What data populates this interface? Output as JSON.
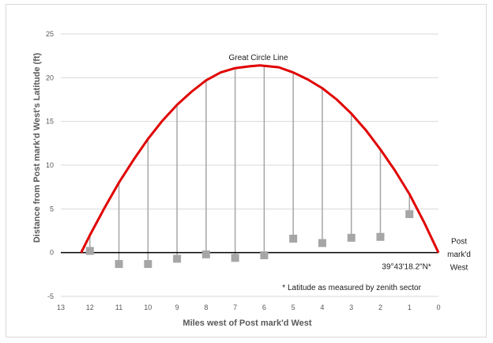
{
  "chart_data": {
    "type": "scatter",
    "xlabel": "Miles west of Post mark'd West",
    "ylabel": "Distance from Post mark'd West's Latitude (ft)",
    "xlim": [
      13,
      0
    ],
    "ylim": [
      -5,
      25
    ],
    "x_ticks": [
      13,
      12,
      11,
      10,
      9,
      8,
      7,
      6,
      5,
      4,
      3,
      2,
      1,
      0
    ],
    "y_ticks": [
      -5,
      0,
      5,
      10,
      15,
      20,
      25
    ],
    "grid": true,
    "colors": {
      "curve": "#e00000",
      "markers": "#a6a6a6",
      "droplines": "#a6a6a6",
      "grid": "#d9d9d9",
      "zero_line": "#000000"
    },
    "series": [
      {
        "type": "line",
        "x": [
          12.3,
          12.0,
          11.5,
          11.0,
          10.5,
          10.0,
          9.5,
          9.0,
          8.5,
          8.0,
          7.5,
          7.0,
          6.5,
          6.15,
          5.5,
          5.0,
          4.5,
          4.0,
          3.5,
          3.0,
          2.5,
          2.0,
          1.5,
          1.0,
          0.5,
          0.0
        ],
        "y": [
          0.0,
          2.0,
          5.1,
          8.0,
          10.6,
          13.0,
          15.1,
          16.9,
          18.4,
          19.7,
          20.6,
          21.1,
          21.3,
          21.4,
          21.2,
          20.6,
          19.8,
          18.8,
          17.5,
          15.9,
          14.0,
          11.8,
          9.4,
          6.7,
          3.5,
          0.0
        ],
        "label": "Great Circle Line"
      },
      {
        "type": "scatter",
        "x": [
          12,
          11,
          10,
          9,
          8,
          7,
          6,
          5,
          4,
          3,
          2,
          1
        ],
        "y": [
          0.2,
          -1.3,
          -1.3,
          -0.7,
          -0.2,
          -0.6,
          -0.3,
          1.6,
          1.1,
          1.7,
          1.8,
          4.4
        ]
      }
    ],
    "annotations": [
      {
        "text": "Great Circle Line",
        "x": 6.2,
        "y": 22.3
      },
      {
        "text": "Post",
        "x": 0,
        "y": 1.3
      },
      {
        "text": "mark'd",
        "x": 0,
        "y": -0.2
      },
      {
        "text": "West",
        "x": 0,
        "y": -1.7
      },
      {
        "text": "39°43'18.2\"N*",
        "x": 1.1,
        "y": -1.6
      },
      {
        "text": "* Latitude as measured by zenith sector",
        "x": 0.6,
        "y": -4.0
      }
    ]
  }
}
